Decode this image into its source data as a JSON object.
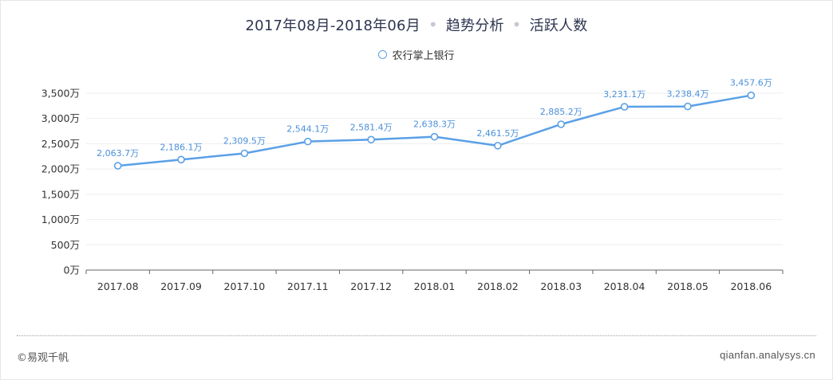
{
  "header": {
    "period": "2017年08月-2018年06月",
    "separator": "•",
    "analysis": "趋势分析",
    "metric": "活跃人数"
  },
  "legend": {
    "label": "农行掌上银行"
  },
  "footer": {
    "copyright": "©易观千帆",
    "site": "qianfan.analysys.cn"
  },
  "colors": {
    "series": "#5ba0e6",
    "label": "#4a90d9",
    "grid": "#eeeeee",
    "axis": "#333333"
  },
  "chart_data": {
    "type": "line",
    "title": "2017年08月-2018年06月 • 趋势分析 • 活跃人数",
    "categories": [
      "2017.08",
      "2017.09",
      "2017.10",
      "2017.11",
      "2017.12",
      "2018.01",
      "2018.02",
      "2018.03",
      "2018.04",
      "2018.05",
      "2018.06"
    ],
    "series": [
      {
        "name": "农行掌上银行",
        "values": [
          2063.7,
          2186.1,
          2309.5,
          2544.1,
          2581.4,
          2638.3,
          2461.5,
          2885.2,
          3231.1,
          3238.4,
          3457.6
        ],
        "labels": [
          "2,063.7万",
          "2,186.1万",
          "2,309.5万",
          "2,544.1万",
          "2,581.4万",
          "2,638.3万",
          "2,461.5万",
          "2,885.2万",
          "3,231.1万",
          "3,238.4万",
          "3,457.6万"
        ]
      }
    ],
    "y_ticks": [
      0,
      500,
      1000,
      1500,
      2000,
      2500,
      3000,
      3500
    ],
    "y_tick_labels": [
      "0万",
      "500万",
      "1,000万",
      "1,500万",
      "2,000万",
      "2,500万",
      "3,000万",
      "3,500万"
    ],
    "ylim": [
      0,
      3500
    ],
    "xlabel": "",
    "ylabel": "",
    "grid": true,
    "legend_position": "top-center"
  }
}
